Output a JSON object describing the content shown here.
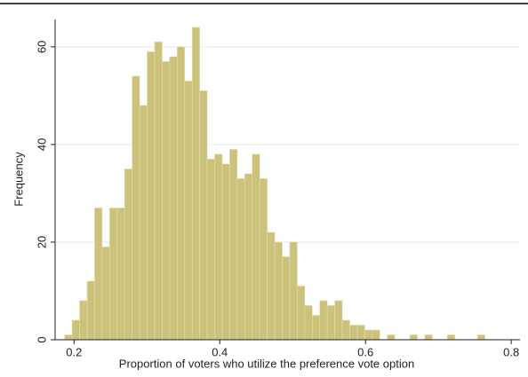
{
  "chart_data": {
    "type": "histogram",
    "x_label": "Proportion of voters who utilize the preference vote option",
    "y_label": "Frequency",
    "color": "#cdc27c",
    "bins": [
      0.187,
      0.1973,
      0.2076,
      0.2179,
      0.2282,
      0.2385,
      0.2488,
      0.2591,
      0.2694,
      0.2797,
      0.29,
      0.3003,
      0.3106,
      0.3209,
      0.3312,
      0.3415,
      0.3518,
      0.3621,
      0.3724,
      0.3827,
      0.393,
      0.4033,
      0.4136,
      0.4239,
      0.4342,
      0.4445,
      0.4548,
      0.4651,
      0.4754,
      0.4857,
      0.496,
      0.5063,
      0.5166,
      0.5269,
      0.5372,
      0.5475,
      0.5578,
      0.5681,
      0.5784,
      0.5887,
      0.599,
      0.6093,
      0.6196,
      0.6299,
      0.6402,
      0.6505,
      0.6608,
      0.6711,
      0.6814,
      0.6917,
      0.702,
      0.7123,
      0.7226,
      0.7329,
      0.7432,
      0.7535,
      0.7638
    ],
    "values": [
      1,
      4,
      8,
      12,
      27,
      19,
      27,
      27,
      35,
      54,
      48,
      59,
      61,
      57,
      58,
      60,
      53,
      64,
      51,
      37,
      38,
      36,
      39,
      33,
      34,
      38,
      33,
      22,
      20,
      17,
      20,
      11,
      7,
      5,
      8,
      7,
      8,
      4,
      3,
      3,
      2,
      2,
      0,
      1,
      0,
      0,
      1,
      0,
      1,
      0,
      0,
      1,
      0,
      0,
      0,
      1
    ],
    "xlim": [
      0.174,
      0.812
    ],
    "ylim": [
      0,
      65.6
    ],
    "xticks": [
      0.2,
      0.4,
      0.6,
      0.8
    ],
    "yticks": [
      0,
      20,
      40,
      60
    ],
    "grid": true
  }
}
